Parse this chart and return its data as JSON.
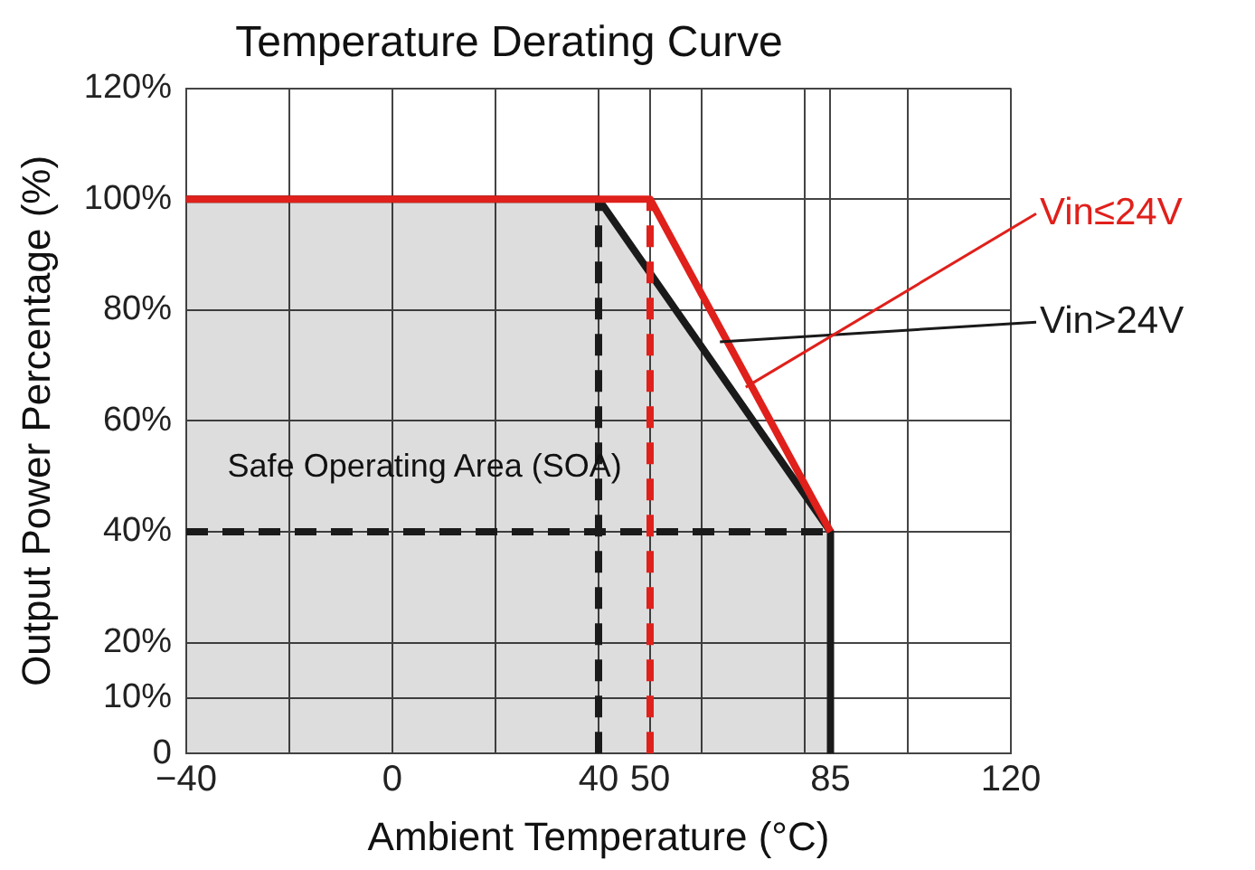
{
  "chart_data": {
    "type": "line",
    "title": "Temperature Derating Curve",
    "xlabel": "Ambient Temperature (°C)",
    "ylabel": "Output Power Percentage (%)",
    "series": [
      {
        "type": "area",
        "name": "Vin>24V",
        "color": "#1a1a1a",
        "x": [
          -40,
          40,
          85,
          85
        ],
        "values": [
          100,
          100,
          40,
          0
        ]
      },
      {
        "name": "Vin≤24V",
        "color": "#e0201b",
        "x": [
          -40,
          50,
          85
        ],
        "values": [
          100,
          100,
          40
        ]
      },
      {
        "color": "#1a1a1a",
        "line_style": "dashed",
        "x": [
          40,
          40
        ],
        "values": [
          0,
          100
        ]
      },
      {
        "color": "#e0201b",
        "line_style": "dashed",
        "x": [
          50,
          50
        ],
        "values": [
          0,
          100
        ]
      },
      {
        "color": "#1a1a1a",
        "line_style": "dashed",
        "x": [
          -40,
          85
        ],
        "values": [
          40,
          40
        ]
      }
    ],
    "xlim": [
      -40,
      120
    ],
    "ylim": [
      0,
      120
    ],
    "xticks": [
      {
        "value": -40,
        "label": "−40"
      },
      {
        "value": -20,
        "label": null
      },
      0,
      {
        "value": 20,
        "label": null
      },
      40,
      50,
      {
        "value": 60,
        "label": null
      },
      {
        "value": 80,
        "label": null
      },
      85,
      {
        "value": 100,
        "label": null
      },
      120
    ],
    "yticks": [
      0,
      {
        "value": 10,
        "label": "10%"
      },
      {
        "value": 20,
        "label": "20%"
      },
      {
        "value": 40,
        "label": "40%"
      },
      {
        "value": 60,
        "label": "60%"
      },
      {
        "value": 80,
        "label": "80%"
      },
      {
        "value": 100,
        "label": "100%"
      },
      {
        "value": 120,
        "label": "120%"
      }
    ],
    "annotations": [
      "Safe Operating Area (SOA)"
    ],
    "grid": true,
    "legend": false,
    "marker": "none",
    "line_style": "solid"
  }
}
